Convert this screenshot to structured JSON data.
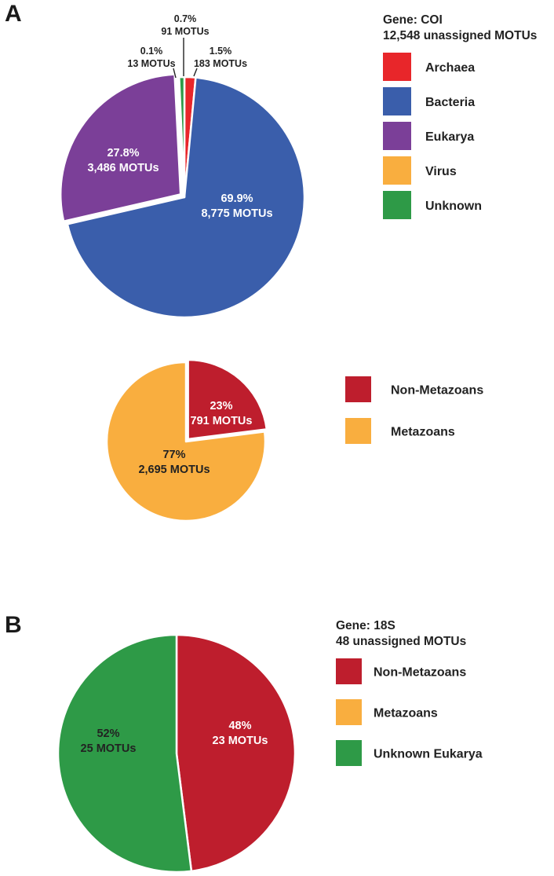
{
  "figure": {
    "panel_a": {
      "letter": "A"
    },
    "panel_b": {
      "letter": "B"
    }
  },
  "chart_data": [
    {
      "id": "coi",
      "type": "pie",
      "legend_title": [
        "Gene: COI",
        "12,548 unassigned MOTUs"
      ],
      "legend_placement": "top-right",
      "slices": [
        {
          "name": "Archaea",
          "value": 1.5,
          "color": "#e8262a",
          "label": [
            "1.5%",
            "183 MOTUs"
          ]
        },
        {
          "name": "Bacteria",
          "value": 69.9,
          "color": "#3a5eab",
          "label": [
            "69.9%",
            "8,775 MOTUs"
          ]
        },
        {
          "name": "Eukarya",
          "value": 27.8,
          "color": "#7b3f98",
          "label": [
            "27.8%",
            "3,486 MOTUs"
          ]
        },
        {
          "name": "Virus",
          "value": 0.1,
          "color": "#f9ae3f",
          "label": [
            "0.1%",
            "13 MOTUs"
          ]
        },
        {
          "name": "Unknown",
          "value": 0.7,
          "color": "#2e9a47",
          "label": [
            "0.7%",
            "91 MOTUs"
          ]
        }
      ]
    },
    {
      "id": "coi_eukarya",
      "type": "pie",
      "legend_placement": "right",
      "slices": [
        {
          "name": "Non-Metazoans",
          "value": 23,
          "color": "#be1e2d",
          "label": [
            "23%",
            "791 MOTUs"
          ]
        },
        {
          "name": "Metazoans",
          "value": 77,
          "color": "#f9ae3f",
          "label": [
            "77%",
            "2,695 MOTUs"
          ]
        }
      ]
    },
    {
      "id": "18s",
      "type": "pie",
      "legend_title": [
        "Gene: 18S",
        "48 unassigned MOTUs"
      ],
      "legend_placement": "right",
      "slices": [
        {
          "name": "Non-Metazoans",
          "value": 48,
          "color": "#be1e2d",
          "label": [
            "48%",
            "23 MOTUs"
          ]
        },
        {
          "name": "Metazoans",
          "value": 0,
          "color": "#f9ae3f",
          "label": []
        },
        {
          "name": "Unknown Eukarya",
          "value": 52,
          "color": "#2e9a47",
          "label": [
            "52%",
            "25 MOTUs"
          ]
        }
      ]
    }
  ]
}
